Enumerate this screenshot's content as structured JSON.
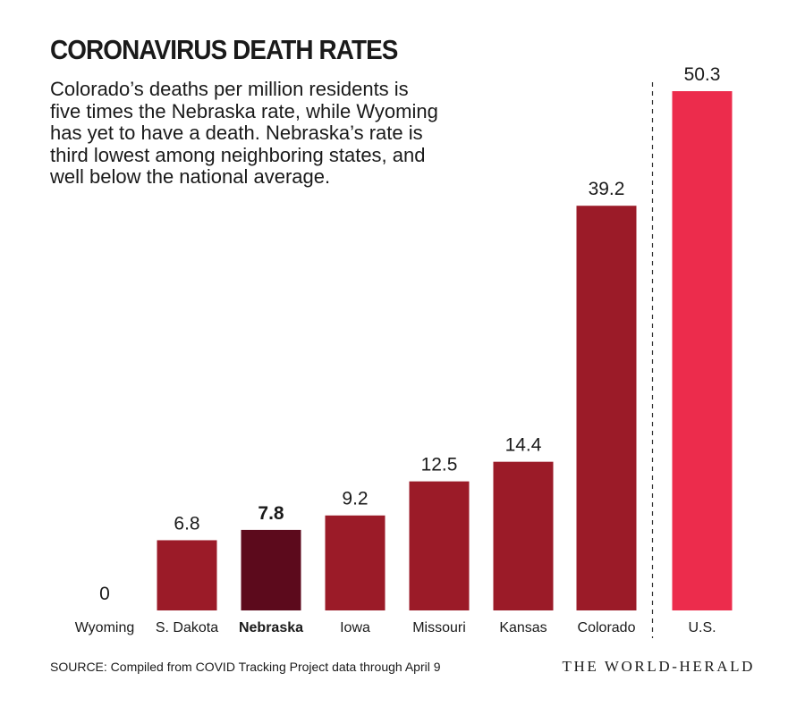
{
  "chart_data": {
    "type": "bar",
    "title": "CORONAVIRUS DEATH RATES",
    "subtitle": "Colorado’s deaths per million residents is five times the Nebraska rate, while Wyoming has yet to have a death. Nebraska’s rate is third lowest among neighboring states, and well below the national average.",
    "categories": [
      "Wyoming",
      "S. Dakota",
      "Nebraska",
      "Iowa",
      "Missouri",
      "Kansas",
      "Colorado",
      "U.S."
    ],
    "values": [
      0,
      6.8,
      7.8,
      9.2,
      12.5,
      14.4,
      39.2,
      50.3
    ],
    "value_labels": [
      "0",
      "6.8",
      "7.8",
      "9.2",
      "12.5",
      "14.4",
      "39.2",
      "50.3"
    ],
    "highlight": "Nebraska",
    "separator_before": "U.S.",
    "ylim": [
      0,
      50.3
    ],
    "grid": false,
    "colors": {
      "default": "#9b1b28",
      "highlight": "#5c0a1c",
      "national": "#ec2c4c"
    }
  },
  "source": "SOURCE: Compiled from COVID Tracking Project data through April 9",
  "logo": "THE WORLD-HERALD"
}
